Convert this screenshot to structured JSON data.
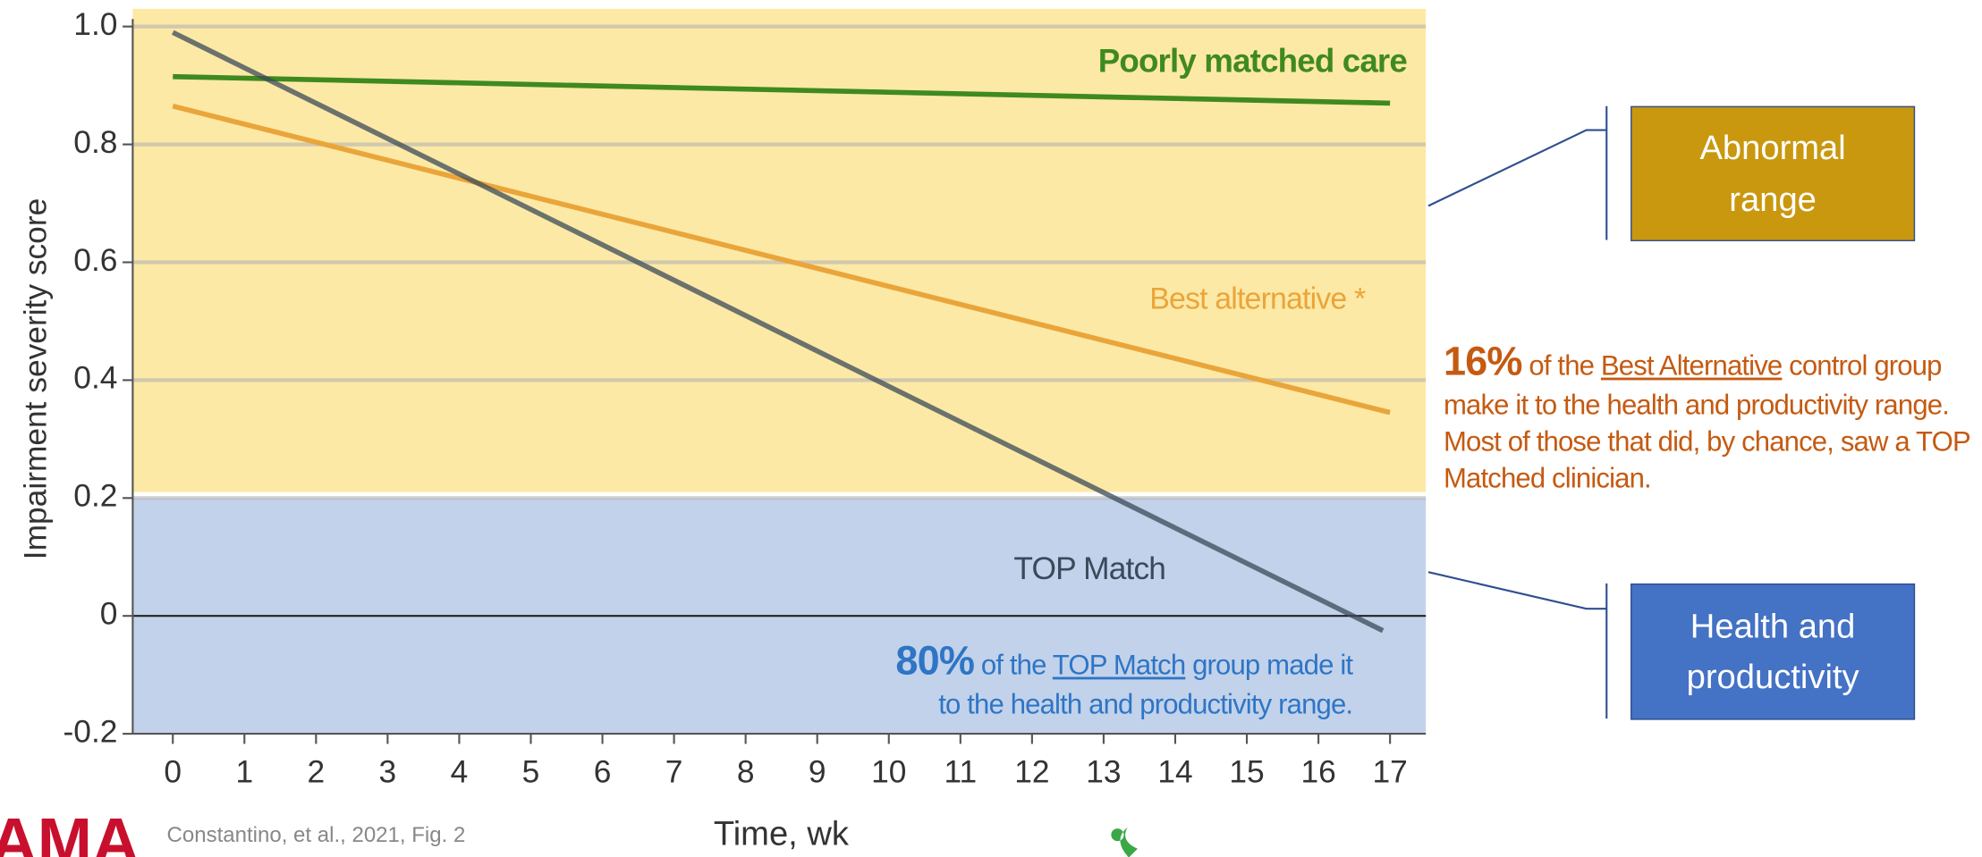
{
  "chart_data": {
    "type": "line",
    "xlabel": "Time, wk",
    "ylabel": "Impairment severity score",
    "xlim": [
      -0.56,
      17.5
    ],
    "ylim": [
      -0.2,
      1.03
    ],
    "xticks": [
      0,
      1,
      2,
      3,
      4,
      5,
      6,
      7,
      8,
      9,
      10,
      11,
      12,
      13,
      14,
      15,
      16,
      17
    ],
    "yticks": [
      {
        "value": -0.2,
        "label": "-0.2"
      },
      0,
      0.2,
      0.4,
      0.6,
      0.8,
      {
        "value": 1.0,
        "label": "1.0"
      }
    ],
    "grid": true,
    "bands": [
      {
        "ymin": 0.21,
        "ymax": 1.03,
        "color": "#fde9a6"
      },
      {
        "ymin": -0.2,
        "ymax": 0.2,
        "color": "#c2d2ea"
      }
    ],
    "series": [
      {
        "name": "Poorly matched care",
        "color": "#3f8a1f",
        "x": [
          0,
          17
        ],
        "values": [
          0.915,
          0.87
        ]
      },
      {
        "name": "Best alternative *",
        "color": "#eaa53a",
        "x": [
          0,
          17
        ],
        "values": [
          0.865,
          0.345
        ]
      },
      {
        "name": "TOP Match",
        "color": "#3a4a58",
        "x": [
          0,
          16.9
        ],
        "values": [
          0.99,
          -0.025
        ]
      }
    ],
    "annotations": {
      "top_match": {
        "bold": "80%",
        "pre": " of the ",
        "link": "TOP Match",
        "post": " group made it to the health and productivity range."
      },
      "best_alt": {
        "bold": "16%",
        "pre": " of the ",
        "link": "Best Alternative",
        "post": " control group make it to the health and productivity range. Most of those that did, by chance, saw a TOP Matched clinician."
      }
    },
    "boxes": [
      "Abnormal range",
      "Health and productivity"
    ],
    "source": "Constantino, et al., 2021, Fig. 2",
    "logo": "AMA"
  }
}
